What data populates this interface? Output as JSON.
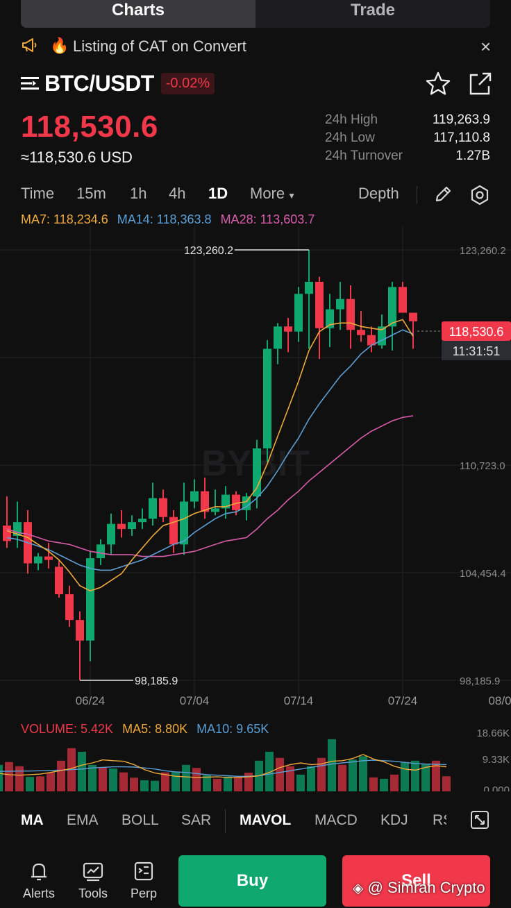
{
  "tabs": {
    "charts": "Charts",
    "trade": "Trade"
  },
  "notice": {
    "text": "Listing of CAT on Convert",
    "close": "×"
  },
  "pair": {
    "symbol": "BTC/USDT",
    "change": "-0.02%"
  },
  "price": {
    "last": "118,530.6",
    "usd": "≈118,530.6 USD"
  },
  "stats": [
    {
      "label": "24h High",
      "value": "119,263.9"
    },
    {
      "label": "24h Low",
      "value": "117,110.8"
    },
    {
      "label": "24h Turnover",
      "value": "1.27B"
    }
  ],
  "timeframes": {
    "time": "Time",
    "m15": "15m",
    "h1": "1h",
    "h4": "4h",
    "d1": "1D",
    "more": "More",
    "depth": "Depth"
  },
  "ma_legend": {
    "ma7": "MA7: 118,234.6",
    "ma14": "MA14: 118,363.8",
    "ma28": "MA28: 113,603.7"
  },
  "colors": {
    "up": "#0fa86e",
    "down": "#f0384a",
    "ma7": "#f0a93b",
    "ma14": "#5b9fd6",
    "ma28": "#d95cab"
  },
  "chart_data": {
    "type": "candlestick",
    "watermark": "BYBIT",
    "price_axis_labels": [
      "123,260.2",
      "110,723.0",
      "104,454.4",
      "98,185.9"
    ],
    "date_labels": [
      "06/24",
      "07/04",
      "07/14",
      "07/24",
      "08/0"
    ],
    "high_marker": "123,260.2",
    "low_marker": "98,185.9",
    "current_price_tag": "118,530.6",
    "countdown_tag": "11:31:51",
    "candles": [
      {
        "o": 107200,
        "h": 108900,
        "l": 105900,
        "c": 106300
      },
      {
        "o": 106600,
        "h": 108600,
        "l": 105900,
        "c": 107400
      },
      {
        "o": 107400,
        "h": 108100,
        "l": 104400,
        "c": 105000
      },
      {
        "o": 105000,
        "h": 105600,
        "l": 104600,
        "c": 105400
      },
      {
        "o": 105400,
        "h": 106200,
        "l": 104700,
        "c": 105200
      },
      {
        "o": 104800,
        "h": 105200,
        "l": 103000,
        "c": 103200
      },
      {
        "o": 103200,
        "h": 103700,
        "l": 101300,
        "c": 101700
      },
      {
        "o": 101700,
        "h": 102200,
        "l": 98190,
        "c": 100500
      },
      {
        "o": 100500,
        "h": 105700,
        "l": 99300,
        "c": 105300
      },
      {
        "o": 105300,
        "h": 106400,
        "l": 104900,
        "c": 106100
      },
      {
        "o": 106100,
        "h": 107900,
        "l": 105500,
        "c": 107300
      },
      {
        "o": 107300,
        "h": 108100,
        "l": 106500,
        "c": 107000
      },
      {
        "o": 107000,
        "h": 107800,
        "l": 106600,
        "c": 107400
      },
      {
        "o": 107400,
        "h": 108200,
        "l": 107000,
        "c": 107600
      },
      {
        "o": 107600,
        "h": 109700,
        "l": 107200,
        "c": 108800
      },
      {
        "o": 108800,
        "h": 109300,
        "l": 107400,
        "c": 107700
      },
      {
        "o": 107700,
        "h": 108100,
        "l": 105600,
        "c": 106100
      },
      {
        "o": 106100,
        "h": 109700,
        "l": 105500,
        "c": 108600
      },
      {
        "o": 108600,
        "h": 109900,
        "l": 108200,
        "c": 109200
      },
      {
        "o": 109200,
        "h": 110000,
        "l": 107600,
        "c": 108000
      },
      {
        "o": 108000,
        "h": 109300,
        "l": 107800,
        "c": 108200
      },
      {
        "o": 108200,
        "h": 109500,
        "l": 107600,
        "c": 109000
      },
      {
        "o": 109000,
        "h": 109200,
        "l": 107800,
        "c": 108100
      },
      {
        "o": 108100,
        "h": 109100,
        "l": 107500,
        "c": 108900
      },
      {
        "o": 108900,
        "h": 112200,
        "l": 108200,
        "c": 111700
      },
      {
        "o": 111700,
        "h": 118000,
        "l": 110900,
        "c": 117500
      },
      {
        "o": 117500,
        "h": 119000,
        "l": 116600,
        "c": 118800
      },
      {
        "o": 118800,
        "h": 119300,
        "l": 117300,
        "c": 118500
      },
      {
        "o": 118500,
        "h": 121100,
        "l": 117900,
        "c": 120700
      },
      {
        "o": 120700,
        "h": 123260,
        "l": 117500,
        "c": 121400
      },
      {
        "o": 121400,
        "h": 121700,
        "l": 116900,
        "c": 118700
      },
      {
        "o": 118700,
        "h": 120700,
        "l": 117600,
        "c": 119800
      },
      {
        "o": 119800,
        "h": 121400,
        "l": 118600,
        "c": 120400
      },
      {
        "o": 120400,
        "h": 121200,
        "l": 117500,
        "c": 118600
      },
      {
        "o": 118600,
        "h": 119700,
        "l": 117900,
        "c": 118300
      },
      {
        "o": 118300,
        "h": 118800,
        "l": 117300,
        "c": 117700
      },
      {
        "o": 117700,
        "h": 119500,
        "l": 117500,
        "c": 118800
      },
      {
        "o": 118800,
        "h": 121400,
        "l": 117400,
        "c": 121100
      },
      {
        "o": 121100,
        "h": 121400,
        "l": 119700,
        "c": 119600
      },
      {
        "o": 119600,
        "h": 119400,
        "l": 117500,
        "c": 119100
      }
    ],
    "ma7": [
      106900,
      106700,
      106500,
      106100,
      105700,
      105200,
      104500,
      103700,
      103400,
      103600,
      104000,
      104400,
      105200,
      105900,
      106600,
      107200,
      107400,
      107600,
      107900,
      108100,
      108300,
      108300,
      108500,
      108600,
      109400,
      110800,
      112400,
      114000,
      115600,
      117400,
      118500,
      118900,
      119000,
      119000,
      118800,
      118700,
      118600,
      119000,
      119200,
      118230
    ],
    "ma14": [
      106500,
      106400,
      106200,
      106000,
      105800,
      105500,
      105200,
      104900,
      104700,
      104600,
      104600,
      104800,
      105000,
      105200,
      105500,
      105800,
      106100,
      106300,
      106800,
      107200,
      107600,
      107900,
      108000,
      108300,
      108800,
      109500,
      110400,
      111400,
      112300,
      113400,
      114300,
      115100,
      115900,
      116500,
      117200,
      117700,
      118000,
      118300,
      118600,
      118360
    ],
    "ma28": [
      107000,
      106800,
      106700,
      106500,
      106300,
      106200,
      106100,
      105900,
      105700,
      105600,
      105500,
      105500,
      105500,
      105400,
      105400,
      105400,
      105500,
      105600,
      105700,
      105900,
      106100,
      106300,
      106400,
      106500,
      107000,
      107600,
      108100,
      108700,
      109200,
      109800,
      110300,
      110800,
      111300,
      111800,
      112300,
      112700,
      113000,
      113300,
      113500,
      113600
    ]
  },
  "volume": {
    "legend": {
      "vol": "VOLUME: 5.42K",
      "ma5": "MA5: 8.80K",
      "ma10": "MA10: 9.65K"
    },
    "axis_labels": [
      "18.66K",
      "9.33K",
      "0.000"
    ],
    "bars": [
      9.5,
      10.5,
      9.0,
      5.2,
      5.4,
      6.8,
      11.0,
      15.5,
      14.2,
      9.5,
      8.6,
      8.2,
      6.8,
      4.9,
      4.0,
      3.8,
      6.8,
      7.0,
      9.5,
      8.4,
      5.8,
      4.5,
      5.3,
      5.0,
      6.7,
      11.0,
      14.2,
      12.0,
      9.0,
      6.0,
      9.0,
      12.0,
      18.7,
      9.5,
      11.4,
      12.6,
      5.0,
      4.5,
      6.0,
      10.5,
      11.0,
      9.8,
      11.0,
      5.4
    ],
    "bar_up": [
      true,
      false,
      false,
      true,
      false,
      false,
      false,
      false,
      true,
      true,
      false,
      true,
      false,
      false,
      true,
      true,
      false,
      true,
      true,
      false,
      true,
      false,
      true,
      false,
      false,
      true,
      true,
      false,
      false,
      true,
      true,
      false,
      true,
      false,
      true,
      true,
      false,
      true,
      false,
      true,
      true,
      true,
      false,
      false
    ],
    "ma5": [
      6.5,
      6.0,
      5.8,
      6.0,
      6.2,
      6.8,
      7.5,
      8.2,
      9.4,
      10.2,
      11.3,
      11.0,
      10.8,
      9.6,
      7.8,
      6.6,
      6.0,
      5.4,
      5.2,
      5.0,
      5.1,
      5.2,
      5.0,
      5.0,
      5.2,
      5.6,
      6.8,
      8.5,
      9.6,
      10.2,
      9.6,
      9.8,
      10.8,
      11.0,
      11.8,
      13.2,
      11.6,
      10.6,
      9.0,
      8.0,
      7.6,
      8.6,
      9.2,
      8.8
    ],
    "ma10": [
      7.2,
      7.2,
      7.3,
      7.3,
      7.4,
      7.5,
      7.6,
      7.8,
      8.0,
      8.4,
      8.6,
      8.8,
      8.8,
      8.7,
      8.4,
      8.0,
      7.4,
      7.0,
      6.8,
      6.4,
      6.0,
      5.8,
      5.6,
      5.4,
      5.4,
      5.6,
      6.2,
      6.8,
      7.4,
      8.0,
      8.6,
      9.2,
      9.8,
      10.2,
      10.6,
      11.0,
      11.2,
      11.0,
      10.8,
      10.4,
      10.0,
      9.8,
      9.7,
      9.6
    ]
  },
  "indicators": {
    "ma": "MA",
    "ema": "EMA",
    "boll": "BOLL",
    "sar": "SAR",
    "mavol": "MAVOL",
    "macd": "MACD",
    "kdj": "KDJ",
    "rsi": "RS"
  },
  "bottom_nav": {
    "alerts": "Alerts",
    "tools": "Tools",
    "perp": "Perp",
    "buy": "Buy",
    "sell": "Sell"
  },
  "watermark_footer": "@ Simran Crypto"
}
